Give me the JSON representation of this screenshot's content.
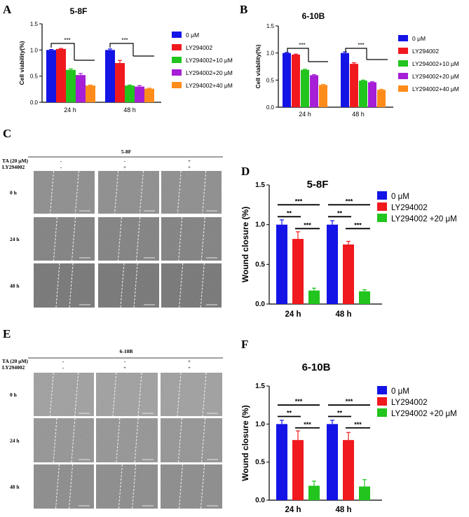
{
  "colors": {
    "c0": "#1414e6",
    "c1": "#f0191e",
    "c2": "#22c41e",
    "c3": "#a61ed6",
    "c4": "#ff8c1a",
    "axis": "#000000",
    "micro_bg": "#9a9a9a"
  },
  "panels": {
    "A": {
      "letter": "A",
      "chart_index": 0
    },
    "B": {
      "letter": "B",
      "chart_index": 1
    },
    "C": {
      "letter": "C",
      "title": "5-8F",
      "row1_label": "TA  (20 μM)",
      "row2_label": "LY294002",
      "cols": [
        [
          "-",
          "-"
        ],
        [
          "-",
          "+"
        ],
        [
          "+",
          "+"
        ]
      ],
      "rows": [
        "0 h",
        "24 h",
        "48 h"
      ],
      "shade": [
        "#9b9b9b",
        "#8f8f8f",
        "#848484"
      ]
    },
    "D": {
      "letter": "D",
      "chart_index": 2
    },
    "E": {
      "letter": "E",
      "title": "6-10B",
      "row1_label": "TA (20 μM)",
      "row2_label": "LY294002",
      "cols": [
        [
          "-",
          "-"
        ],
        [
          "-",
          "+"
        ],
        [
          "+",
          "+"
        ]
      ],
      "rows": [
        "0 h",
        "24 h",
        "48 h"
      ],
      "shade": [
        "#adadad",
        "#a2a2a2",
        "#999999"
      ]
    },
    "F": {
      "letter": "F",
      "chart_index": 3
    }
  },
  "chart_data": [
    {
      "type": "bar",
      "title": "5-8F",
      "ylabel": "Cell viability(%)",
      "ylim": [
        0,
        1.5
      ],
      "yticks": [
        "0.0",
        "0.5",
        "1.0",
        "1.5"
      ],
      "categories": [
        "24 h",
        "48 h"
      ],
      "series": [
        {
          "name": "0 μM",
          "values": [
            1.0,
            1.0
          ],
          "errors": [
            0.01,
            0.02
          ],
          "color": "#1414e6"
        },
        {
          "name": "LY294002",
          "values": [
            1.02,
            0.75
          ],
          "errors": [
            0.01,
            0.05
          ],
          "color": "#f0191e"
        },
        {
          "name": "LY294002+10 μM",
          "values": [
            0.62,
            0.32
          ],
          "errors": [
            0.02,
            0.01
          ],
          "color": "#22c41e"
        },
        {
          "name": "LY294002+20 μM",
          "values": [
            0.52,
            0.3
          ],
          "errors": [
            0.03,
            0.02
          ],
          "color": "#a61ed6"
        },
        {
          "name": "LY294002+40 μM",
          "values": [
            0.32,
            0.26
          ],
          "errors": [
            0.01,
            0.01
          ],
          "color": "#ff8c1a"
        }
      ],
      "annotations": [
        "***",
        "***"
      ]
    },
    {
      "type": "bar",
      "title": "6-10B",
      "ylabel": "Cell viability(%)",
      "ylim": [
        0,
        1.5
      ],
      "yticks": [
        "0.0",
        "0.5",
        "1.0",
        "1.5"
      ],
      "categories": [
        "24 h",
        "48 h"
      ],
      "series": [
        {
          "name": "0 μM",
          "values": [
            1.0,
            1.0
          ],
          "errors": [
            0.01,
            0.02
          ],
          "color": "#1414e6"
        },
        {
          "name": "LY294002",
          "values": [
            0.97,
            0.8
          ],
          "errors": [
            0.01,
            0.02
          ],
          "color": "#f0191e"
        },
        {
          "name": "LY294002+10 μM",
          "values": [
            0.69,
            0.49
          ],
          "errors": [
            0.01,
            0.01
          ],
          "color": "#22c41e"
        },
        {
          "name": "LY294002+20 μM",
          "values": [
            0.59,
            0.46
          ],
          "errors": [
            0.01,
            0.01
          ],
          "color": "#a61ed6"
        },
        {
          "name": "LY294002+40 μM",
          "values": [
            0.41,
            0.32
          ],
          "errors": [
            0.01,
            0.01
          ],
          "color": "#ff8c1a"
        }
      ],
      "annotations": [
        "***",
        "***"
      ]
    },
    {
      "type": "bar",
      "title": "5-8F",
      "ylabel": "Wound closure (%)",
      "ylim": [
        0,
        1.5
      ],
      "yticks": [
        "0.0",
        "0.5",
        "1.0",
        "1.5"
      ],
      "categories": [
        "24 h",
        "48 h"
      ],
      "series": [
        {
          "name": "0 μM",
          "values": [
            1.0,
            1.0
          ],
          "errors": [
            0.06,
            0.05
          ],
          "color": "#1414e6"
        },
        {
          "name": "LY294002",
          "values": [
            0.82,
            0.75
          ],
          "errors": [
            0.09,
            0.04
          ],
          "color": "#f0191e"
        },
        {
          "name": "LY294002 +20 μM",
          "values": [
            0.17,
            0.16
          ],
          "errors": [
            0.03,
            0.02
          ],
          "color": "#22c41e"
        }
      ],
      "annotations": [
        "***",
        "**",
        "***",
        "***",
        "**",
        "***"
      ]
    },
    {
      "type": "bar",
      "title": "6-10B",
      "ylabel": "Wound closure (%)",
      "ylim": [
        0,
        1.5
      ],
      "yticks": [
        "0.0",
        "0.5",
        "1.0",
        "1.5"
      ],
      "categories": [
        "24 h",
        "48 h"
      ],
      "series": [
        {
          "name": " 0 μM",
          "values": [
            1.0,
            1.0
          ],
          "errors": [
            0.05,
            0.05
          ],
          "color": "#1414e6"
        },
        {
          "name": "LY294002",
          "values": [
            0.79,
            0.79
          ],
          "errors": [
            0.12,
            0.1
          ],
          "color": "#f0191e"
        },
        {
          "name": "LY294002 +20 μM",
          "values": [
            0.19,
            0.18
          ],
          "errors": [
            0.06,
            0.09
          ],
          "color": "#22c41e"
        }
      ],
      "annotations": [
        "***",
        "**",
        "***",
        "***",
        "**",
        "***"
      ]
    }
  ]
}
